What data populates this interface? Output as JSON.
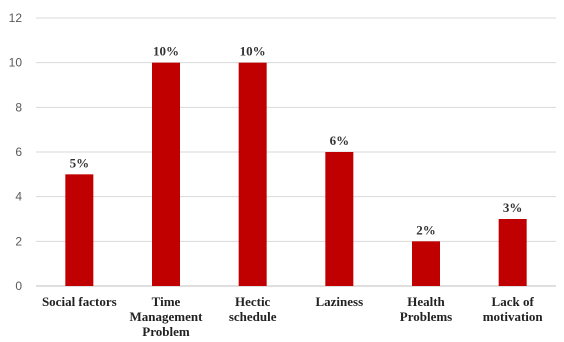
{
  "chart_data": {
    "type": "bar",
    "title": "",
    "xlabel": "",
    "ylabel": "",
    "ylim": [
      0,
      12
    ],
    "yticks": [
      0,
      2,
      4,
      6,
      8,
      10,
      12
    ],
    "grid": true,
    "legend": "none",
    "bar_color": "#C00000",
    "categories": [
      [
        "Social factors"
      ],
      [
        "Time",
        "Management",
        "Problem"
      ],
      [
        "Hectic",
        "schedule"
      ],
      [
        "Laziness"
      ],
      [
        "Health",
        "Problems"
      ],
      [
        "Lack of",
        "motivation"
      ]
    ],
    "values": [
      5,
      10,
      10,
      6,
      2,
      3
    ],
    "data_labels": [
      "5%",
      "10%",
      "10%",
      "6%",
      "2%",
      "3%"
    ]
  }
}
